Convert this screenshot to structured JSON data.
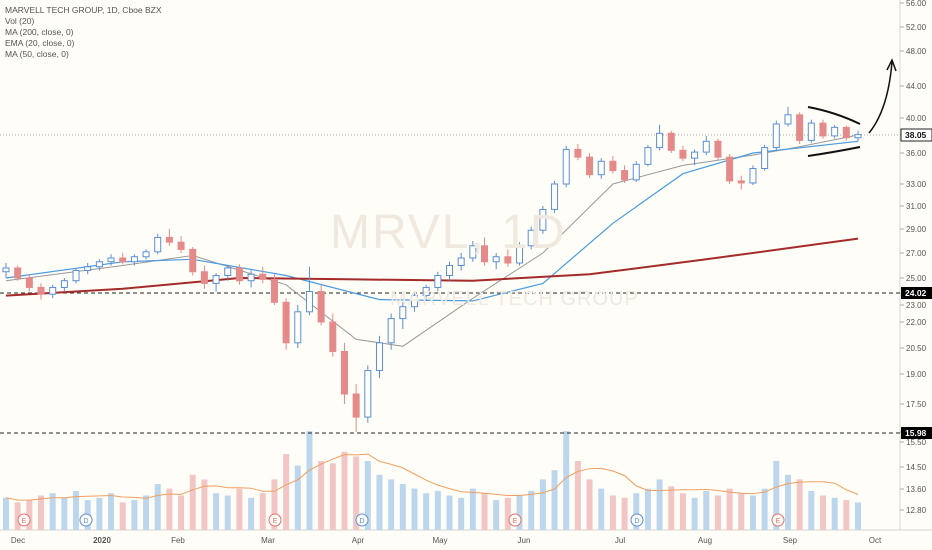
{
  "legend": {
    "title": "MARVELL TECH GROUP, 1D, Cboe BZX",
    "vol": "Vol (20)",
    "ma200": "MA (200, close, 0)",
    "ema20": "EMA (20, close, 0)",
    "ma50": "MA (50, close, 0)"
  },
  "watermark": {
    "ticker": "MRVL, 1D",
    "name": "MARVELL TECH GROUP"
  },
  "colors": {
    "up": "#5b8fd4",
    "down": "#e58a8a",
    "ma200": "#a52a2a",
    "ma50": "#4a9be0",
    "ema20": "#999999",
    "vol_avg": "#f0a060",
    "vol_up": "#bcd6ee",
    "vol_down": "#f3c6c6",
    "price_marker_bg": "#ffffff",
    "level_marker_bg": "#000000"
  },
  "chart_data": {
    "type": "candlestick",
    "ylim": [
      12.0,
      56.0
    ],
    "y_tick_labels": [
      "56.00",
      "52.00",
      "48.00",
      "44.00",
      "40.00",
      "38.00",
      "36.00",
      "33.00",
      "31.00",
      "29.00",
      "27.00",
      "25.00",
      "23.00",
      "22.00",
      "20.50",
      "19.00",
      "17.50",
      "16.00",
      "15.50",
      "14.50",
      "13.60",
      "12.80"
    ],
    "x_tick_labels": [
      "Dec",
      "2020",
      "Feb",
      "Mar",
      "Apr",
      "May",
      "Jun",
      "Jul",
      "Aug",
      "Sep",
      "Oct"
    ],
    "last_price_label": "38.05",
    "level_labels": [
      "24.02",
      "15.98"
    ],
    "earnings_markers": [
      "E",
      "D",
      "E",
      "D",
      "E",
      "D",
      "E"
    ],
    "candles": [
      {
        "x": "Dec",
        "o": 25.5,
        "h": 26.2,
        "l": 25.0,
        "c": 25.8
      },
      {
        "x": "Dec",
        "o": 25.8,
        "h": 26.0,
        "l": 24.8,
        "c": 25.0
      },
      {
        "x": "Dec",
        "o": 25.0,
        "h": 25.3,
        "l": 24.0,
        "c": 24.3
      },
      {
        "x": "Dec",
        "o": 24.3,
        "h": 24.6,
        "l": 23.4,
        "c": 23.8
      },
      {
        "x": "Dec",
        "o": 23.8,
        "h": 24.5,
        "l": 23.5,
        "c": 24.3
      },
      {
        "x": "Dec",
        "o": 24.3,
        "h": 25.0,
        "l": 24.0,
        "c": 24.8
      },
      {
        "x": "Dec",
        "o": 24.8,
        "h": 25.8,
        "l": 24.6,
        "c": 25.6
      },
      {
        "x": "Dec",
        "o": 25.6,
        "h": 26.2,
        "l": 25.3,
        "c": 25.9
      },
      {
        "x": "2020",
        "o": 25.9,
        "h": 26.5,
        "l": 25.6,
        "c": 26.3
      },
      {
        "x": "2020",
        "o": 26.3,
        "h": 26.9,
        "l": 26.0,
        "c": 26.6
      },
      {
        "x": "2020",
        "o": 26.6,
        "h": 27.0,
        "l": 26.1,
        "c": 26.3
      },
      {
        "x": "2020",
        "o": 26.3,
        "h": 26.9,
        "l": 26.0,
        "c": 26.7
      },
      {
        "x": "2020",
        "o": 26.7,
        "h": 27.3,
        "l": 26.5,
        "c": 27.1
      },
      {
        "x": "2020",
        "o": 27.1,
        "h": 28.6,
        "l": 26.9,
        "c": 28.3
      },
      {
        "x": "2020",
        "o": 28.3,
        "h": 29.0,
        "l": 27.6,
        "c": 27.9
      },
      {
        "x": "2020",
        "o": 27.9,
        "h": 28.4,
        "l": 27.0,
        "c": 27.3
      },
      {
        "x": "Feb",
        "o": 27.3,
        "h": 27.5,
        "l": 25.2,
        "c": 25.5
      },
      {
        "x": "Feb",
        "o": 25.5,
        "h": 26.0,
        "l": 24.2,
        "c": 24.6
      },
      {
        "x": "Feb",
        "o": 24.6,
        "h": 25.4,
        "l": 24.0,
        "c": 25.2
      },
      {
        "x": "Feb",
        "o": 25.2,
        "h": 26.0,
        "l": 24.8,
        "c": 25.8
      },
      {
        "x": "Feb",
        "o": 25.8,
        "h": 26.1,
        "l": 24.5,
        "c": 24.8
      },
      {
        "x": "Feb",
        "o": 24.8,
        "h": 25.6,
        "l": 24.3,
        "c": 25.3
      },
      {
        "x": "Feb",
        "o": 25.3,
        "h": 25.9,
        "l": 24.6,
        "c": 24.9
      },
      {
        "x": "Feb",
        "o": 24.9,
        "h": 25.3,
        "l": 23.0,
        "c": 23.2
      },
      {
        "x": "Mar",
        "o": 23.2,
        "h": 23.5,
        "l": 20.4,
        "c": 20.8
      },
      {
        "x": "Mar",
        "o": 20.8,
        "h": 23.0,
        "l": 20.5,
        "c": 22.6
      },
      {
        "x": "Mar",
        "o": 22.6,
        "h": 25.9,
        "l": 22.4,
        "c": 24.0
      },
      {
        "x": "Mar",
        "o": 24.0,
        "h": 24.5,
        "l": 21.8,
        "c": 22.0
      },
      {
        "x": "Mar",
        "o": 22.0,
        "h": 22.5,
        "l": 20.0,
        "c": 20.3
      },
      {
        "x": "Mar",
        "o": 20.3,
        "h": 20.8,
        "l": 17.5,
        "c": 18.0
      },
      {
        "x": "Mar",
        "o": 18.0,
        "h": 18.5,
        "l": 16.0,
        "c": 16.8
      },
      {
        "x": "Mar",
        "o": 16.8,
        "h": 19.5,
        "l": 16.5,
        "c": 19.2
      },
      {
        "x": "Mar",
        "o": 19.2,
        "h": 21.2,
        "l": 18.8,
        "c": 20.8
      },
      {
        "x": "Mar",
        "o": 20.8,
        "h": 22.5,
        "l": 20.4,
        "c": 22.2
      },
      {
        "x": "Apr",
        "o": 22.2,
        "h": 23.2,
        "l": 21.6,
        "c": 22.9
      },
      {
        "x": "Apr",
        "o": 22.9,
        "h": 24.0,
        "l": 22.6,
        "c": 23.7
      },
      {
        "x": "Apr",
        "o": 23.7,
        "h": 24.5,
        "l": 23.3,
        "c": 24.3
      },
      {
        "x": "Apr",
        "o": 24.3,
        "h": 25.5,
        "l": 24.0,
        "c": 25.2
      },
      {
        "x": "Apr",
        "o": 25.2,
        "h": 26.3,
        "l": 24.8,
        "c": 26.0
      },
      {
        "x": "Apr",
        "o": 26.0,
        "h": 27.0,
        "l": 25.6,
        "c": 26.6
      },
      {
        "x": "Apr",
        "o": 26.6,
        "h": 28.0,
        "l": 26.3,
        "c": 27.6
      },
      {
        "x": "Apr",
        "o": 27.6,
        "h": 28.3,
        "l": 26.0,
        "c": 26.3
      },
      {
        "x": "May",
        "o": 26.3,
        "h": 27.0,
        "l": 25.7,
        "c": 26.7
      },
      {
        "x": "May",
        "o": 26.7,
        "h": 27.3,
        "l": 25.9,
        "c": 26.2
      },
      {
        "x": "May",
        "o": 26.2,
        "h": 27.9,
        "l": 26.0,
        "c": 27.6
      },
      {
        "x": "May",
        "o": 27.6,
        "h": 29.2,
        "l": 27.3,
        "c": 28.9
      },
      {
        "x": "May",
        "o": 28.9,
        "h": 31.0,
        "l": 28.6,
        "c": 30.7
      },
      {
        "x": "May",
        "o": 30.7,
        "h": 33.3,
        "l": 30.4,
        "c": 33.0
      },
      {
        "x": "Jun",
        "o": 33.0,
        "h": 36.8,
        "l": 32.7,
        "c": 36.4
      },
      {
        "x": "Jun",
        "o": 36.4,
        "h": 37.0,
        "l": 35.3,
        "c": 35.6
      },
      {
        "x": "Jun",
        "o": 35.6,
        "h": 36.0,
        "l": 33.6,
        "c": 33.9
      },
      {
        "x": "Jun",
        "o": 33.9,
        "h": 35.5,
        "l": 33.5,
        "c": 35.2
      },
      {
        "x": "Jun",
        "o": 35.2,
        "h": 35.7,
        "l": 34.0,
        "c": 34.3
      },
      {
        "x": "Jun",
        "o": 34.3,
        "h": 34.8,
        "l": 33.1,
        "c": 33.4
      },
      {
        "x": "Jul",
        "o": 33.4,
        "h": 35.2,
        "l": 33.2,
        "c": 34.9
      },
      {
        "x": "Jul",
        "o": 34.9,
        "h": 36.9,
        "l": 34.7,
        "c": 36.6
      },
      {
        "x": "Jul",
        "o": 36.6,
        "h": 39.2,
        "l": 36.3,
        "c": 38.2
      },
      {
        "x": "Jul",
        "o": 38.2,
        "h": 38.5,
        "l": 36.0,
        "c": 36.3
      },
      {
        "x": "Jul",
        "o": 36.3,
        "h": 36.8,
        "l": 35.2,
        "c": 35.5
      },
      {
        "x": "Jul",
        "o": 35.5,
        "h": 36.4,
        "l": 34.8,
        "c": 36.1
      },
      {
        "x": "Aug",
        "o": 36.1,
        "h": 37.9,
        "l": 35.8,
        "c": 37.3
      },
      {
        "x": "Aug",
        "o": 37.3,
        "h": 37.6,
        "l": 35.3,
        "c": 35.6
      },
      {
        "x": "Aug",
        "o": 35.6,
        "h": 35.9,
        "l": 33.0,
        "c": 33.3
      },
      {
        "x": "Aug",
        "o": 33.3,
        "h": 33.8,
        "l": 32.5,
        "c": 33.1
      },
      {
        "x": "Aug",
        "o": 33.1,
        "h": 34.8,
        "l": 32.9,
        "c": 34.5
      },
      {
        "x": "Aug",
        "o": 34.5,
        "h": 36.9,
        "l": 34.3,
        "c": 36.6
      },
      {
        "x": "Sep",
        "o": 36.6,
        "h": 39.7,
        "l": 36.3,
        "c": 39.3
      },
      {
        "x": "Sep",
        "o": 39.3,
        "h": 41.4,
        "l": 39.0,
        "c": 40.4
      },
      {
        "x": "Sep",
        "o": 40.4,
        "h": 40.7,
        "l": 37.0,
        "c": 37.4
      },
      {
        "x": "Sep",
        "o": 37.4,
        "h": 39.8,
        "l": 37.1,
        "c": 39.4
      },
      {
        "x": "Sep",
        "o": 39.4,
        "h": 39.8,
        "l": 37.6,
        "c": 37.9
      },
      {
        "x": "Sep",
        "o": 37.9,
        "h": 39.2,
        "l": 37.6,
        "c": 38.9
      },
      {
        "x": "Sep",
        "o": 38.9,
        "h": 39.1,
        "l": 37.4,
        "c": 37.7
      },
      {
        "x": "Sep",
        "o": 37.7,
        "h": 38.5,
        "l": 37.3,
        "c": 38.05
      }
    ],
    "ma200": [
      [
        0,
        23.7
      ],
      [
        10,
        24.2
      ],
      [
        20,
        25.0
      ],
      [
        30,
        24.9
      ],
      [
        40,
        24.8
      ],
      [
        50,
        25.3
      ],
      [
        60,
        26.5
      ],
      [
        70,
        27.8
      ],
      [
        73,
        28.2
      ]
    ],
    "ma50": [
      [
        0,
        25.0
      ],
      [
        10,
        26.3
      ],
      [
        16,
        26.5
      ],
      [
        24,
        25.2
      ],
      [
        32,
        23.4
      ],
      [
        40,
        23.3
      ],
      [
        46,
        24.6
      ],
      [
        52,
        29.5
      ],
      [
        58,
        34.0
      ],
      [
        64,
        36.0
      ],
      [
        73,
        37.3
      ]
    ],
    "ema20": [
      [
        0,
        24.8
      ],
      [
        10,
        26.0
      ],
      [
        16,
        26.8
      ],
      [
        24,
        24.5
      ],
      [
        30,
        21.0
      ],
      [
        34,
        20.6
      ],
      [
        40,
        23.5
      ],
      [
        46,
        27.0
      ],
      [
        52,
        33.0
      ],
      [
        58,
        34.8
      ],
      [
        64,
        35.8
      ],
      [
        68,
        36.7
      ],
      [
        73,
        38.0
      ]
    ],
    "volume": [
      {
        "v": 14,
        "up": true
      },
      {
        "v": 12,
        "up": false
      },
      {
        "v": 13,
        "up": false
      },
      {
        "v": 15,
        "up": false
      },
      {
        "v": 16,
        "up": true
      },
      {
        "v": 14,
        "up": true
      },
      {
        "v": 17,
        "up": true
      },
      {
        "v": 13,
        "up": true
      },
      {
        "v": 14,
        "up": true
      },
      {
        "v": 16,
        "up": true
      },
      {
        "v": 12,
        "up": false
      },
      {
        "v": 13,
        "up": true
      },
      {
        "v": 15,
        "up": true
      },
      {
        "v": 20,
        "up": true
      },
      {
        "v": 18,
        "up": false
      },
      {
        "v": 15,
        "up": false
      },
      {
        "v": 24,
        "up": false
      },
      {
        "v": 22,
        "up": false
      },
      {
        "v": 16,
        "up": true
      },
      {
        "v": 15,
        "up": true
      },
      {
        "v": 18,
        "up": false
      },
      {
        "v": 14,
        "up": true
      },
      {
        "v": 16,
        "up": false
      },
      {
        "v": 22,
        "up": false
      },
      {
        "v": 33,
        "up": false
      },
      {
        "v": 28,
        "up": true
      },
      {
        "v": 43,
        "up": true
      },
      {
        "v": 30,
        "up": false
      },
      {
        "v": 29,
        "up": false
      },
      {
        "v": 34,
        "up": false
      },
      {
        "v": 32,
        "up": false
      },
      {
        "v": 30,
        "up": true
      },
      {
        "v": 24,
        "up": true
      },
      {
        "v": 22,
        "up": true
      },
      {
        "v": 20,
        "up": true
      },
      {
        "v": 18,
        "up": true
      },
      {
        "v": 16,
        "up": true
      },
      {
        "v": 17,
        "up": true
      },
      {
        "v": 15,
        "up": true
      },
      {
        "v": 14,
        "up": true
      },
      {
        "v": 18,
        "up": true
      },
      {
        "v": 16,
        "up": false
      },
      {
        "v": 13,
        "up": true
      },
      {
        "v": 14,
        "up": false
      },
      {
        "v": 15,
        "up": true
      },
      {
        "v": 17,
        "up": true
      },
      {
        "v": 22,
        "up": true
      },
      {
        "v": 26,
        "up": true
      },
      {
        "v": 43,
        "up": true
      },
      {
        "v": 30,
        "up": false
      },
      {
        "v": 22,
        "up": false
      },
      {
        "v": 18,
        "up": true
      },
      {
        "v": 15,
        "up": false
      },
      {
        "v": 14,
        "up": false
      },
      {
        "v": 16,
        "up": true
      },
      {
        "v": 18,
        "up": true
      },
      {
        "v": 22,
        "up": true
      },
      {
        "v": 19,
        "up": false
      },
      {
        "v": 16,
        "up": false
      },
      {
        "v": 14,
        "up": true
      },
      {
        "v": 17,
        "up": true
      },
      {
        "v": 15,
        "up": false
      },
      {
        "v": 18,
        "up": false
      },
      {
        "v": 16,
        "up": false
      },
      {
        "v": 15,
        "up": true
      },
      {
        "v": 18,
        "up": true
      },
      {
        "v": 30,
        "up": true
      },
      {
        "v": 24,
        "up": true
      },
      {
        "v": 22,
        "up": false
      },
      {
        "v": 17,
        "up": true
      },
      {
        "v": 15,
        "up": false
      },
      {
        "v": 14,
        "up": true
      },
      {
        "v": 13,
        "up": false
      },
      {
        "v": 12,
        "up": true
      }
    ]
  }
}
